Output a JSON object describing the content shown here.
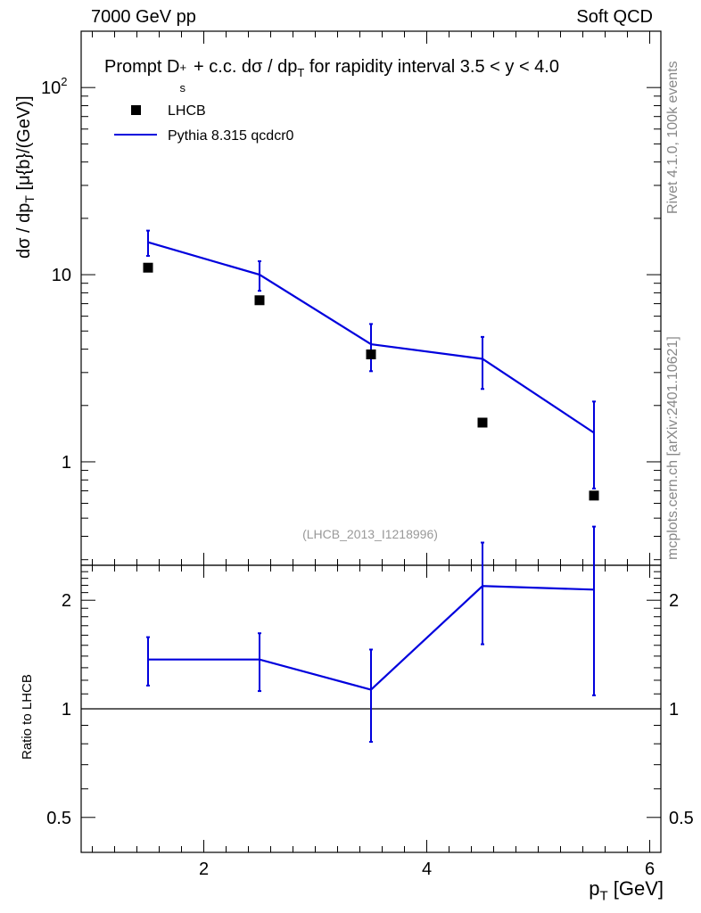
{
  "header": {
    "left": "7000 GeV pp",
    "right": "Soft QCD"
  },
  "side_text": {
    "rivet": "Rivet 4.1.0,  100k events",
    "mcplots": "mcplots.cern.ch [arXiv:2401.10621]"
  },
  "chart_data": {
    "type": "line",
    "title": "Prompt D_s^+ + c.c.  dσ / dp_T for rapidity interval 3.5 < y < 4.0",
    "title_parts": {
      "pre": "Prompt D",
      "sub": "s",
      "sup": "+",
      "mid": " + c.c.  dσ / dp",
      "sub2": "T",
      "post": " for rapidity interval 3.5 < y < 4.0"
    },
    "analysis_id": "(LHCB_2013_I1218996)",
    "xlabel": "p_T [GeV]",
    "xlabel_parts": {
      "main": "p",
      "sub": "T",
      "unit": " [GeV]"
    },
    "ylabel": "dσ / dp_T [μ{b}/(GeV)]",
    "ylabel_parts": {
      "pre": "dσ / dp",
      "sub": "T",
      "post": " [μ{b}/(GeV)]"
    },
    "ratio_ylabel": "Ratio to LHCB",
    "xlim": [
      0.9,
      6.1
    ],
    "ylim": [
      0.28,
      200
    ],
    "ratio_ylim": [
      0.4,
      2.5
    ],
    "x_ticks": [
      2,
      4,
      6
    ],
    "x_tick_labels": [
      "2",
      "4",
      "6"
    ],
    "y_ticks": [
      1,
      10,
      100
    ],
    "y_tick_labels": [
      "1",
      "10",
      "10^2"
    ],
    "ratio_y_ticks": [
      0.5,
      1,
      2
    ],
    "ratio_y_tick_labels": [
      "0.5",
      "1",
      "2"
    ],
    "series": [
      {
        "name": "LHCB",
        "kind": "markers",
        "color": "#000000",
        "x": [
          1.5,
          2.5,
          3.5,
          4.5,
          5.5
        ],
        "y": [
          10.9,
          7.3,
          3.75,
          1.62,
          0.66
        ]
      },
      {
        "name": "Pythia 8.315 qcdcr0",
        "kind": "line",
        "color": "#0000dd",
        "x": [
          1.5,
          2.5,
          3.5,
          4.5,
          5.5
        ],
        "y": [
          14.9,
          10.0,
          4.25,
          3.55,
          1.43
        ],
        "y_err_low": [
          12.6,
          8.2,
          3.05,
          2.45,
          0.72
        ],
        "y_err_high": [
          17.2,
          11.8,
          5.45,
          4.65,
          2.1
        ]
      }
    ],
    "ratio": {
      "name": "Pythia 8.315 qcdcr0",
      "color": "#0000dd",
      "x": [
        1.5,
        2.5,
        3.5,
        4.5,
        5.5
      ],
      "y": [
        1.37,
        1.37,
        1.13,
        2.19,
        2.14
      ],
      "y_err_low": [
        1.16,
        1.12,
        0.81,
        1.51,
        1.09
      ],
      "y_err_high": [
        1.58,
        1.62,
        1.46,
        2.89,
        3.2
      ]
    }
  }
}
